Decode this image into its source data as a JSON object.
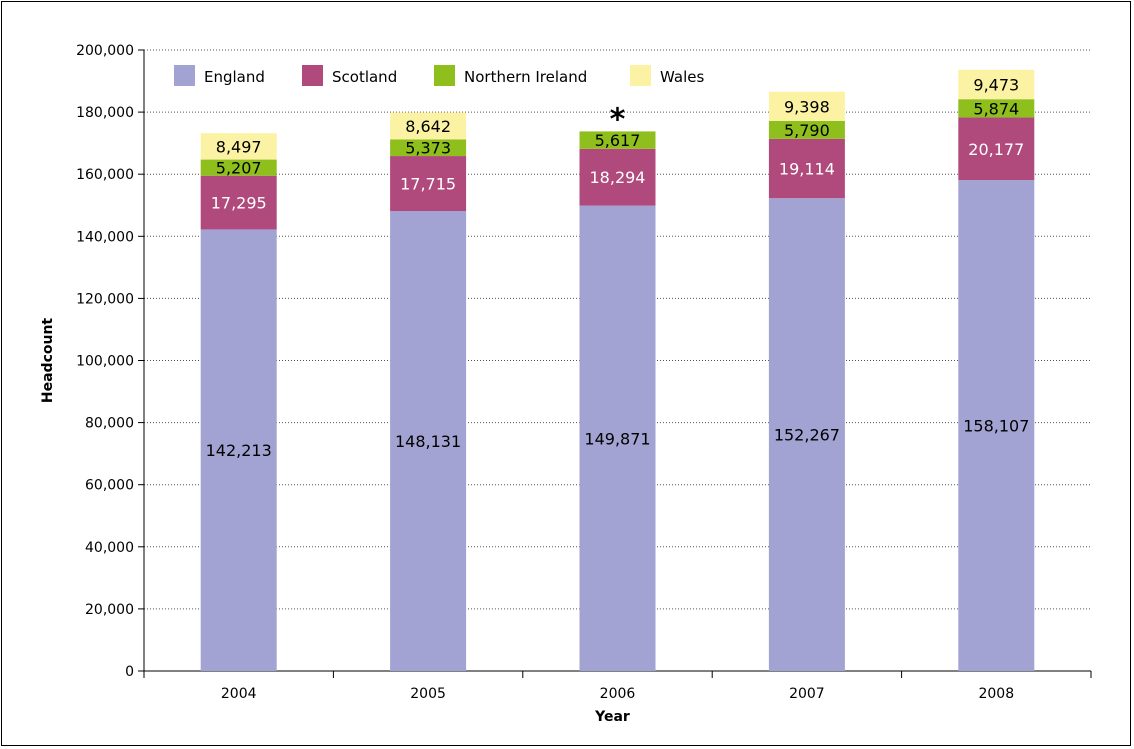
{
  "chart_data": {
    "type": "bar",
    "stacked": true,
    "categories": [
      "2004",
      "2005",
      "2006",
      "2007",
      "2008"
    ],
    "series": [
      {
        "name": "England",
        "values": [
          142213,
          148131,
          149871,
          152267,
          158107
        ],
        "label_color": "#000000"
      },
      {
        "name": "Scotland",
        "values": [
          17295,
          17715,
          18294,
          19114,
          20177
        ],
        "label_color": "#ffffff"
      },
      {
        "name": "Northern Ireland",
        "values": [
          5207,
          5373,
          5617,
          5790,
          5874
        ],
        "label_color": "#000000"
      },
      {
        "name": "Wales",
        "values": [
          8497,
          8642,
          null,
          9398,
          9473
        ],
        "label_color": "#000000"
      }
    ],
    "data_labels": [
      [
        "142,213",
        "148,131",
        "149,871",
        "152,267",
        "158,107"
      ],
      [
        "17,295",
        "17,715",
        "18,294",
        "19,114",
        "20,177"
      ],
      [
        "5,207",
        "5,373",
        "5,617",
        "5,790",
        "5,874"
      ],
      [
        "8,497",
        "8,642",
        "",
        "9,398",
        "9,473"
      ]
    ],
    "colors": [
      "#a2a3d2",
      "#b04a7c",
      "#8fbf1c",
      "#fbf3a3"
    ],
    "xlabel": "Year",
    "ylabel": "Headcount",
    "ylim": [
      0,
      200000
    ],
    "yticks": [
      0,
      20000,
      40000,
      60000,
      80000,
      100000,
      120000,
      140000,
      160000,
      180000,
      200000
    ],
    "ytick_labels": [
      "0",
      "20,000",
      "40,000",
      "60,000",
      "80,000",
      "100,000",
      "120,000",
      "140,000",
      "160,000",
      "180,000",
      "200,000"
    ],
    "grid": "horizontal dotted",
    "legend_position": "top-left",
    "annotations": [
      {
        "text": "*",
        "category": "2006"
      }
    ]
  }
}
